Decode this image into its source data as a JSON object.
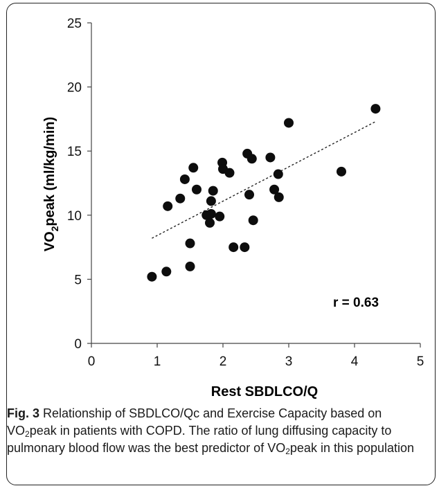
{
  "chart_data": {
    "type": "scatter",
    "xlabel": "Rest SBDLCO/Q",
    "ylabel_prefix": "VO",
    "ylabel_sub": "2",
    "ylabel_suffix": "peak  (ml/kg/min)",
    "xlim": [
      0,
      5
    ],
    "ylim": [
      0,
      25
    ],
    "x_ticks": [
      0,
      1,
      2,
      3,
      4,
      5
    ],
    "y_ticks": [
      0,
      5,
      10,
      15,
      20,
      25
    ],
    "grid": false,
    "annotation": "r = 0.63",
    "trendline": {
      "style": "dotted",
      "x": [
        0.92,
        4.32
      ],
      "y": [
        8.2,
        17.3
      ]
    },
    "points": [
      {
        "x": 0.92,
        "y": 5.2
      },
      {
        "x": 1.14,
        "y": 5.6
      },
      {
        "x": 1.16,
        "y": 10.7
      },
      {
        "x": 1.35,
        "y": 11.3
      },
      {
        "x": 1.42,
        "y": 12.8
      },
      {
        "x": 1.5,
        "y": 6.0
      },
      {
        "x": 1.5,
        "y": 7.8
      },
      {
        "x": 1.55,
        "y": 13.7
      },
      {
        "x": 1.6,
        "y": 12.0
      },
      {
        "x": 1.75,
        "y": 10.0
      },
      {
        "x": 1.8,
        "y": 9.4
      },
      {
        "x": 1.82,
        "y": 11.1
      },
      {
        "x": 1.82,
        "y": 10.1
      },
      {
        "x": 1.85,
        "y": 11.9
      },
      {
        "x": 1.95,
        "y": 9.9
      },
      {
        "x": 1.99,
        "y": 14.1
      },
      {
        "x": 2.0,
        "y": 13.6
      },
      {
        "x": 2.1,
        "y": 13.3
      },
      {
        "x": 2.16,
        "y": 7.5
      },
      {
        "x": 2.33,
        "y": 7.5
      },
      {
        "x": 2.37,
        "y": 14.8
      },
      {
        "x": 2.4,
        "y": 11.6
      },
      {
        "x": 2.44,
        "y": 14.4
      },
      {
        "x": 2.46,
        "y": 9.6
      },
      {
        "x": 2.72,
        "y": 14.5
      },
      {
        "x": 2.78,
        "y": 12.0
      },
      {
        "x": 2.84,
        "y": 13.2
      },
      {
        "x": 2.85,
        "y": 11.4
      },
      {
        "x": 3.0,
        "y": 17.2
      },
      {
        "x": 3.8,
        "y": 13.4
      },
      {
        "x": 4.32,
        "y": 18.3
      }
    ]
  },
  "caption": {
    "label": "Fig. 3",
    "text_1": " Relationship of SBDLCO/Qc and Exercise Capacity based on VO",
    "sub_1": "2",
    "text_2": "peak in patients with COPD. The ratio of lung diffusing capacity to pulmonary blood flow was the best predictor of VO",
    "sub_2": "2",
    "text_3": "peak in this population"
  }
}
